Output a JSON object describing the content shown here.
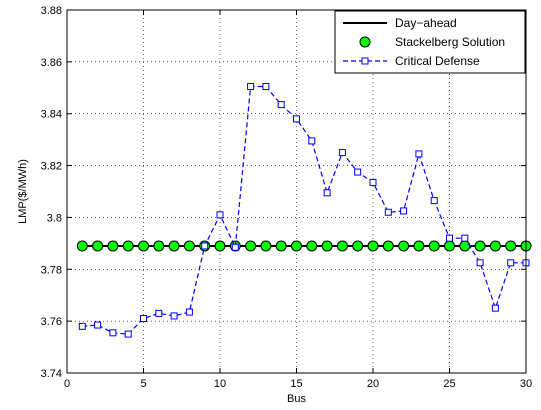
{
  "chart_data": {
    "type": "line",
    "title": "",
    "xlabel": "Bus",
    "ylabel": "LMP($/MWh)",
    "xlim": [
      0,
      30
    ],
    "ylim": [
      3.74,
      3.88
    ],
    "xticks": [
      0,
      5,
      10,
      15,
      20,
      25,
      30
    ],
    "yticks": [
      3.74,
      3.76,
      3.78,
      3.8,
      3.82,
      3.84,
      3.86,
      3.88
    ],
    "ytick_labels": [
      "3.74",
      "3.76",
      "3.78",
      "3.8",
      "3.82",
      "3.84",
      "3.86",
      "3.88"
    ],
    "grid": true,
    "legend_position": "top-right",
    "x": [
      1,
      2,
      3,
      4,
      5,
      6,
      7,
      8,
      9,
      10,
      11,
      12,
      13,
      14,
      15,
      16,
      17,
      18,
      19,
      20,
      21,
      22,
      23,
      24,
      25,
      26,
      27,
      28,
      29,
      30
    ],
    "series": [
      {
        "name": "Day−ahead",
        "style": "solid",
        "marker": "none",
        "color": "#000000",
        "values": [
          3.789,
          3.789,
          3.789,
          3.789,
          3.789,
          3.789,
          3.789,
          3.789,
          3.789,
          3.789,
          3.789,
          3.789,
          3.789,
          3.789,
          3.789,
          3.789,
          3.789,
          3.789,
          3.789,
          3.789,
          3.789,
          3.789,
          3.789,
          3.789,
          3.789,
          3.789,
          3.789,
          3.789,
          3.789,
          3.789
        ]
      },
      {
        "name": "Stackelberg Solution",
        "style": "none",
        "marker": "circle",
        "color": "#000000",
        "marker_fill": "#00ff00",
        "values": [
          3.789,
          3.789,
          3.789,
          3.789,
          3.789,
          3.789,
          3.789,
          3.789,
          3.789,
          3.789,
          3.789,
          3.789,
          3.789,
          3.789,
          3.789,
          3.789,
          3.789,
          3.789,
          3.789,
          3.789,
          3.789,
          3.789,
          3.789,
          3.789,
          3.789,
          3.789,
          3.789,
          3.789,
          3.789,
          3.789
        ]
      },
      {
        "name": "Critical Defense",
        "style": "dashed",
        "marker": "square",
        "color": "#0000ff",
        "marker_fill": "#ffffff",
        "values": [
          3.758,
          3.7585,
          3.7555,
          3.755,
          3.761,
          3.763,
          3.762,
          3.7635,
          3.789,
          3.801,
          3.7885,
          3.8505,
          3.8505,
          3.8435,
          3.838,
          3.8295,
          3.8095,
          3.825,
          3.8175,
          3.8135,
          3.802,
          3.8025,
          3.8245,
          3.8065,
          3.792,
          3.792,
          3.7825,
          3.765,
          3.7825,
          3.7825
        ]
      }
    ]
  }
}
